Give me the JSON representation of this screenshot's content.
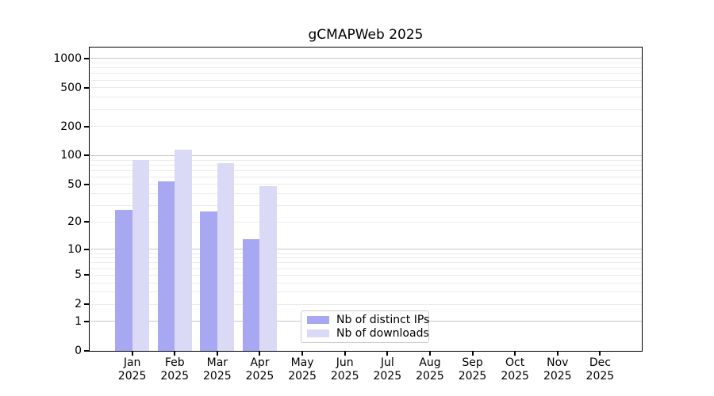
{
  "title": "gCMAPWeb 2025",
  "chart_data": {
    "type": "bar",
    "title": "gCMAPWeb 2025",
    "categories": [
      "Jan",
      "Feb",
      "Mar",
      "Apr",
      "May",
      "Jun",
      "Jul",
      "Aug",
      "Sep",
      "Oct",
      "Nov",
      "Dec"
    ],
    "category_year": "2025",
    "series": [
      {
        "name": "Nb of distinct IPs",
        "color": "#a7a7f2",
        "values": [
          27,
          54,
          26,
          13,
          0,
          0,
          0,
          0,
          0,
          0,
          0,
          0
        ]
      },
      {
        "name": "Nb of downloads",
        "color": "#dadaf7",
        "values": [
          90,
          115,
          84,
          48,
          0,
          0,
          0,
          0,
          0,
          0,
          0,
          0
        ]
      }
    ],
    "xlabel": "",
    "ylabel": "",
    "yscale": "log(1+y)",
    "yticks": [
      0,
      1,
      2,
      5,
      10,
      20,
      50,
      100,
      200,
      500,
      1000
    ],
    "ylim": [
      0,
      1300
    ],
    "grid": true,
    "legend_position": "lower center-left",
    "colors": {
      "major_grid": "#c6c6c6",
      "minor_grid": "#ebebeb",
      "axis": "#000000",
      "background": "#ffffff"
    }
  },
  "legend": {
    "items": [
      {
        "label": "Nb of distinct IPs"
      },
      {
        "label": "Nb of downloads"
      }
    ]
  }
}
